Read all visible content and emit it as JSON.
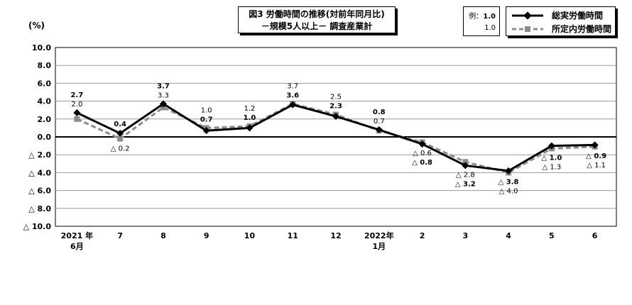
{
  "title_box": {
    "line1": "図3 労働時間の推移(対前年同月比)",
    "line2": "－規模5人以上－ 調査産業計"
  },
  "unit_label": "(%)",
  "example": {
    "label": "例：",
    "bold_value": "1.0",
    "value": "1.0"
  },
  "legend": {
    "total": "総実労働時間",
    "scheduled": "所定内労働時間"
  },
  "colors": {
    "total": "#000000",
    "scheduled": "#8c8c8c"
  },
  "chart_data": {
    "type": "line",
    "categories": [
      "2021年 6月",
      "7",
      "8",
      "9",
      "10",
      "11",
      "12",
      "2022年 1月",
      "2",
      "3",
      "4",
      "5",
      "6"
    ],
    "x_tick_labels": [
      [
        "2021 年",
        "6月"
      ],
      [
        "7"
      ],
      [
        "8"
      ],
      [
        "9"
      ],
      [
        "10"
      ],
      [
        "11"
      ],
      [
        "12"
      ],
      [
        "2022年",
        "1月"
      ],
      [
        "2"
      ],
      [
        "3"
      ],
      [
        "4"
      ],
      [
        "5"
      ],
      [
        "6"
      ]
    ],
    "y_tick_labels": [
      "10.0",
      "8.0",
      "6.0",
      "4.0",
      "2.0",
      "0.0",
      "△ 2.0",
      "△ 4.0",
      "△ 6.0",
      "△ 8.0",
      "△ 10.0"
    ],
    "ylim": [
      -10,
      10
    ],
    "grid": true,
    "series": [
      {
        "name": "総実労働時間",
        "values": [
          2.7,
          0.4,
          3.7,
          0.7,
          1.0,
          3.6,
          2.3,
          0.8,
          -0.8,
          -3.2,
          -3.8,
          -1.0,
          -0.9
        ],
        "labels": [
          "2.7",
          "0.4",
          "3.7",
          "0.7",
          "1.0",
          "3.6",
          "2.3",
          "0.8",
          "△ 0.8",
          "△ 3.2",
          "△ 3.8",
          "△ 1.0",
          "△ 0.9"
        ]
      },
      {
        "name": "所定内労働時間",
        "values": [
          2.0,
          -0.2,
          3.3,
          1.0,
          1.2,
          3.7,
          2.5,
          0.7,
          -0.6,
          -2.8,
          -4.0,
          -1.3,
          -1.1
        ],
        "labels": [
          "2.0",
          "△ 0.2",
          "3.3",
          "1.0",
          "1.2",
          "3.7",
          "2.5",
          "0.7",
          "△ 0.6",
          "△ 2.8",
          "△ 4.0",
          "△ 1.3",
          "△ 1.1"
        ]
      }
    ]
  }
}
